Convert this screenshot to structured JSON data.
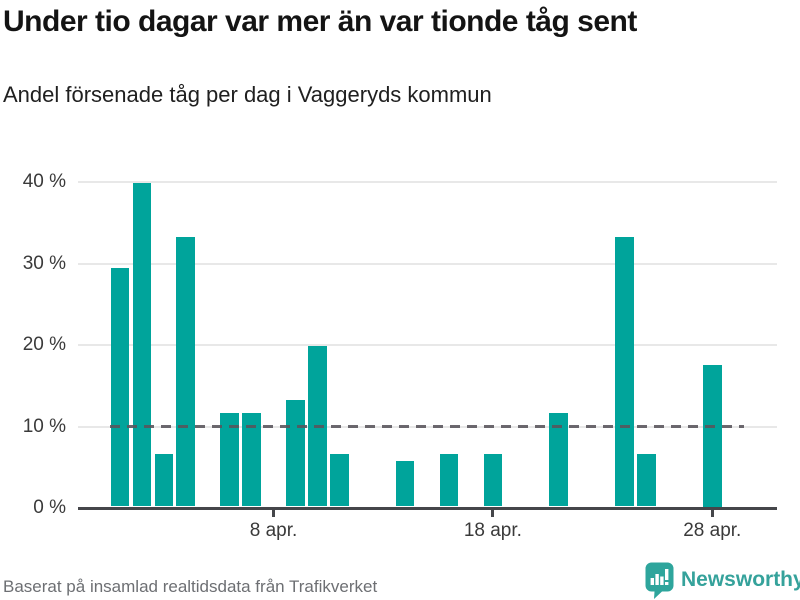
{
  "header": {
    "title": "Under tio dagar var mer än var tionde tåg sent",
    "subtitle": "Andel försenade tåg per dag i Vaggeryds kommun"
  },
  "footer": {
    "source": "Baserat på insamlad realtidsdata från Trafikverket",
    "brand": "Newsworthy"
  },
  "colors": {
    "bar": "#00a49b",
    "brand": "#35a29b",
    "axis": "#45464a",
    "grid": "#e8e8e8",
    "reference_line": "#58545b",
    "title_text": "#141414",
    "axis_text": "#3a3a3a",
    "muted_text": "#6d6f73"
  },
  "chart_data": {
    "type": "bar",
    "title": "Under tio dagar var mer än var tionde tåg sent",
    "subtitle": "Andel försenade tåg per dag i Vaggeryds kommun",
    "unit": "%",
    "month": "april",
    "categories": [
      "1 apr",
      "2 apr",
      "3 apr",
      "4 apr",
      "6 apr",
      "7 apr",
      "9 apr",
      "10 apr",
      "11 apr",
      "14 apr",
      "16 apr",
      "18 apr",
      "21 apr",
      "24 apr",
      "25 apr",
      "28 apr"
    ],
    "days": [
      1,
      2,
      3,
      4,
      6,
      7,
      9,
      10,
      11,
      14,
      16,
      18,
      21,
      24,
      25,
      28
    ],
    "values": [
      29.4,
      39.9,
      6.6,
      33.2,
      11.7,
      11.7,
      13.2,
      19.9,
      6.6,
      5.8,
      6.6,
      6.6,
      11.7,
      33.2,
      6.6,
      17.5
    ],
    "x_ticks": [
      {
        "day": 8,
        "label": "8 apr."
      },
      {
        "day": 18,
        "label": "18 apr."
      },
      {
        "day": 28,
        "label": "28 apr."
      }
    ],
    "y_ticks": [
      {
        "value": 0,
        "label": "0 %"
      },
      {
        "value": 10,
        "label": "10 %"
      },
      {
        "value": 20,
        "label": "20 %"
      },
      {
        "value": 30,
        "label": "30 %"
      },
      {
        "value": 40,
        "label": "40 %"
      }
    ],
    "reference_line": {
      "value": 10,
      "style": "dashed"
    },
    "ylim": [
      0,
      42
    ],
    "grid": "horizontal",
    "legend": "none"
  }
}
